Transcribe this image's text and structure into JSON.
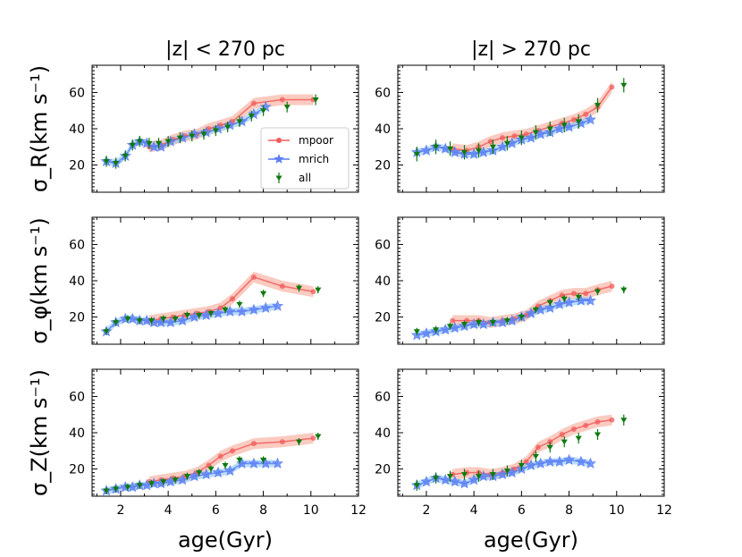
{
  "figure": {
    "col_titles": [
      "|z| < 270 pc",
      "|z| > 270 pc"
    ],
    "xlabel": "age(Gyr)",
    "ylabels": [
      "σ_R(km s⁻¹)",
      "σ_φ(km s⁻¹)",
      "σ_Z(km s⁻¹)"
    ],
    "legend": {
      "placement": "inside top-left panel, center-right",
      "entries": [
        "mpoor",
        "mrich",
        "all"
      ]
    },
    "colors": {
      "mpoor": "#f25c5c",
      "mrich": "#5b7ff5",
      "all": "#0e7a0e",
      "mpoor_band": "#f7a896",
      "mrich_band": "#8fc8f0"
    }
  },
  "chart_data": [
    {
      "type": "line",
      "panel": "sigma_R, |z|<270 pc",
      "xlim": [
        0.8,
        12
      ],
      "ylim": [
        5,
        75
      ],
      "xticks": [
        "2",
        "4",
        "6",
        "8",
        "10",
        "12"
      ],
      "yticks": [
        "20",
        "40",
        "60"
      ],
      "series": [
        {
          "name": "mpoor",
          "x": [
            3.2,
            3.7,
            4.2,
            4.7,
            5.2,
            5.7,
            6.2,
            6.7,
            7.6,
            8.8,
            10.1
          ],
          "y": [
            30,
            31,
            34,
            36,
            37,
            40,
            42,
            44,
            54,
            56,
            56
          ],
          "band": 3
        },
        {
          "name": "mrich",
          "x": [
            1.4,
            1.8,
            2.2,
            2.5,
            2.8,
            3.1,
            3.4,
            3.7,
            4.1,
            4.6,
            5.1,
            5.6,
            6.1,
            6.6,
            7.1,
            7.6,
            8.1
          ],
          "y": [
            22,
            21,
            25,
            31,
            33,
            32,
            30,
            30,
            33,
            35,
            37,
            38,
            40,
            42,
            44,
            48,
            52
          ],
          "band": 2
        },
        {
          "name": "all",
          "x": [
            1.4,
            1.8,
            2.2,
            2.5,
            2.8,
            3.2,
            3.6,
            4.0,
            4.5,
            5.0,
            5.5,
            6.0,
            6.5,
            7.0,
            7.5,
            8.0,
            9.0,
            10.2
          ],
          "y": [
            22,
            21,
            25,
            31,
            33,
            32,
            32,
            33,
            35,
            36,
            37,
            39,
            41,
            44,
            47,
            50,
            52,
            56
          ],
          "err": 3
        }
      ]
    },
    {
      "type": "line",
      "panel": "sigma_R, |z|>270 pc",
      "xlim": [
        0.8,
        12
      ],
      "ylim": [
        5,
        75
      ],
      "xticks": [
        "2",
        "4",
        "6",
        "8",
        "10",
        "12"
      ],
      "yticks": [
        "20",
        "40",
        "60"
      ],
      "series": [
        {
          "name": "mpoor",
          "x": [
            3.1,
            3.7,
            4.2,
            4.7,
            5.2,
            5.7,
            6.2,
            6.7,
            7.2,
            7.7,
            8.2,
            8.7,
            9.2,
            9.8
          ],
          "y": [
            29,
            28,
            30,
            33,
            35,
            36,
            37,
            39,
            41,
            43,
            45,
            48,
            52,
            63
          ],
          "band": 3
        },
        {
          "name": "mrich",
          "x": [
            1.6,
            2.0,
            2.4,
            2.8,
            3.2,
            3.6,
            4.0,
            4.4,
            4.8,
            5.2,
            5.6,
            6.0,
            6.4,
            6.8,
            7.2,
            7.6,
            8.0,
            8.5,
            8.9
          ],
          "y": [
            27,
            28,
            30,
            29,
            27,
            26,
            26,
            27,
            28,
            30,
            32,
            34,
            35,
            37,
            38,
            40,
            41,
            43,
            45
          ],
          "band": 2
        },
        {
          "name": "all",
          "x": [
            1.6,
            2.4,
            3.0,
            3.6,
            4.2,
            4.8,
            5.4,
            6.0,
            6.6,
            7.2,
            7.8,
            8.4,
            9.2,
            10.3
          ],
          "y": [
            26,
            30,
            29,
            27,
            28,
            30,
            32,
            35,
            38,
            40,
            42,
            44,
            53,
            64
          ],
          "err": 4
        }
      ]
    },
    {
      "type": "line",
      "panel": "sigma_phi, |z|<270 pc",
      "xlim": [
        0.8,
        12
      ],
      "ylim": [
        5,
        75
      ],
      "xticks": [
        "2",
        "4",
        "6",
        "8",
        "10",
        "12"
      ],
      "yticks": [
        "20",
        "40",
        "60"
      ],
      "series": [
        {
          "name": "mpoor",
          "x": [
            3.2,
            3.7,
            4.2,
            4.7,
            5.2,
            5.7,
            6.2,
            6.7,
            7.6,
            8.8,
            10.1
          ],
          "y": [
            18,
            19,
            20,
            21,
            22,
            23,
            25,
            30,
            42,
            37,
            34
          ],
          "band": 3
        },
        {
          "name": "mrich",
          "x": [
            1.4,
            1.8,
            2.2,
            2.5,
            2.8,
            3.1,
            3.4,
            3.7,
            4.1,
            4.6,
            5.1,
            5.6,
            6.1,
            6.6,
            7.1,
            7.6,
            8.1,
            8.6
          ],
          "y": [
            12,
            17,
            19,
            19,
            18,
            18,
            17,
            17,
            17,
            18,
            20,
            21,
            22,
            23,
            23,
            24,
            25,
            26
          ],
          "band": 2
        },
        {
          "name": "all",
          "x": [
            1.4,
            1.8,
            2.3,
            2.8,
            3.3,
            3.8,
            4.3,
            4.8,
            5.3,
            5.8,
            6.4,
            7.0,
            8.0,
            9.5,
            10.3
          ],
          "y": [
            12,
            17,
            19,
            18,
            18,
            19,
            19,
            21,
            21,
            22,
            24,
            27,
            33,
            36,
            35
          ],
          "err": 2
        }
      ]
    },
    {
      "type": "line",
      "panel": "sigma_phi, |z|>270 pc",
      "xlim": [
        0.8,
        12
      ],
      "ylim": [
        5,
        75
      ],
      "xticks": [
        "2",
        "4",
        "6",
        "8",
        "10",
        "12"
      ],
      "yticks": [
        "20",
        "40",
        "60"
      ],
      "series": [
        {
          "name": "mpoor",
          "x": [
            3.1,
            3.7,
            4.2,
            4.7,
            5.2,
            5.7,
            6.2,
            6.7,
            7.2,
            7.7,
            8.2,
            8.7,
            9.2,
            9.8
          ],
          "y": [
            18,
            18,
            18,
            17,
            18,
            19,
            21,
            26,
            29,
            32,
            33,
            33,
            35,
            37
          ],
          "band": 3
        },
        {
          "name": "mrich",
          "x": [
            1.6,
            2.0,
            2.4,
            2.8,
            3.2,
            3.6,
            4.0,
            4.4,
            4.8,
            5.2,
            5.6,
            6.0,
            6.4,
            6.8,
            7.2,
            7.6,
            8.0,
            8.5,
            8.9
          ],
          "y": [
            10,
            11,
            12,
            13,
            14,
            15,
            16,
            16,
            17,
            17,
            18,
            20,
            22,
            24,
            25,
            27,
            28,
            29,
            29
          ],
          "band": 2
        },
        {
          "name": "all",
          "x": [
            1.6,
            2.4,
            3.0,
            3.6,
            4.2,
            4.8,
            5.4,
            6.0,
            6.6,
            7.2,
            7.8,
            8.4,
            9.2,
            10.3
          ],
          "y": [
            12,
            13,
            15,
            16,
            17,
            17,
            18,
            20,
            24,
            28,
            30,
            31,
            34,
            35
          ],
          "err": 2
        }
      ]
    },
    {
      "type": "line",
      "panel": "sigma_Z, |z|<270 pc",
      "xlim": [
        0.8,
        12
      ],
      "ylim": [
        5,
        75
      ],
      "xticks": [
        "2",
        "4",
        "6",
        "8",
        "10",
        "12"
      ],
      "yticks": [
        "20",
        "40",
        "60"
      ],
      "series": [
        {
          "name": "mpoor",
          "x": [
            3.2,
            3.7,
            4.2,
            4.7,
            5.2,
            5.7,
            6.2,
            6.7,
            7.6,
            8.8,
            10.1
          ],
          "y": [
            13,
            14,
            15,
            16,
            18,
            22,
            27,
            30,
            34,
            35,
            37
          ],
          "band": 3
        },
        {
          "name": "mrich",
          "x": [
            1.4,
            1.8,
            2.2,
            2.5,
            2.8,
            3.1,
            3.4,
            3.7,
            4.1,
            4.6,
            5.1,
            5.6,
            6.1,
            6.6,
            7.1,
            7.6,
            8.1,
            8.6
          ],
          "y": [
            8,
            9,
            10,
            10,
            11,
            11,
            12,
            12,
            13,
            14,
            16,
            17,
            18,
            19,
            23,
            23,
            23,
            23
          ],
          "band": 2
        },
        {
          "name": "all",
          "x": [
            1.4,
            1.8,
            2.3,
            2.8,
            3.3,
            3.8,
            4.3,
            4.8,
            5.3,
            5.8,
            6.4,
            7.0,
            8.0,
            9.5,
            10.3
          ],
          "y": [
            8,
            9,
            10,
            11,
            12,
            13,
            14,
            16,
            18,
            20,
            22,
            25,
            25,
            35,
            38
          ],
          "err": 2
        }
      ]
    },
    {
      "type": "line",
      "panel": "sigma_Z, |z|>270 pc",
      "xlim": [
        0.8,
        12
      ],
      "ylim": [
        5,
        75
      ],
      "xticks": [
        "2",
        "4",
        "6",
        "8",
        "10",
        "12"
      ],
      "yticks": [
        "20",
        "40",
        "60"
      ],
      "series": [
        {
          "name": "mpoor",
          "x": [
            3.1,
            3.7,
            4.2,
            4.7,
            5.2,
            5.7,
            6.2,
            6.7,
            7.2,
            7.7,
            8.2,
            8.7,
            9.2,
            9.8
          ],
          "y": [
            17,
            18,
            18,
            17,
            18,
            20,
            24,
            32,
            35,
            39,
            42,
            44,
            46,
            47
          ],
          "band": 3
        },
        {
          "name": "mrich",
          "x": [
            1.6,
            2.0,
            2.4,
            2.8,
            3.2,
            3.6,
            4.0,
            4.4,
            4.8,
            5.2,
            5.6,
            6.0,
            6.4,
            6.8,
            7.2,
            7.6,
            8.0,
            8.5,
            8.9
          ],
          "y": [
            11,
            13,
            15,
            14,
            13,
            12,
            14,
            16,
            16,
            17,
            18,
            20,
            22,
            23,
            24,
            24,
            25,
            24,
            23
          ],
          "band": 2
        },
        {
          "name": "all",
          "x": [
            1.6,
            2.4,
            3.0,
            3.6,
            4.2,
            4.8,
            5.4,
            6.0,
            6.6,
            7.2,
            7.8,
            8.4,
            9.2,
            10.3
          ],
          "y": [
            11,
            15,
            16,
            17,
            16,
            17,
            19,
            22,
            27,
            32,
            35,
            37,
            39,
            47
          ],
          "err": 3
        }
      ]
    }
  ]
}
